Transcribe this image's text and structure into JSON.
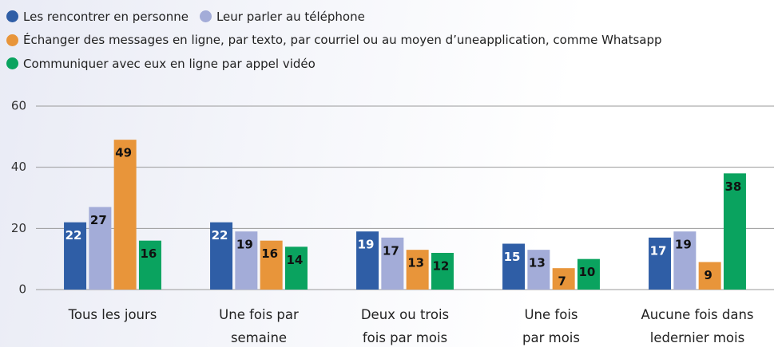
{
  "chart_data": {
    "type": "bar",
    "categories": [
      "Tous les jours",
      "Une fois par\nsemaine",
      "Deux ou trois\nfois par mois",
      "Une fois\npar mois",
      "Aucune fois dans\nledernier mois"
    ],
    "series": [
      {
        "name": "Les rencontrer en personne",
        "color": "#2f5ea6",
        "label_color": "#ffffff",
        "values": [
          22,
          22,
          19,
          15,
          17
        ]
      },
      {
        "name": "Leur parler au téléphone",
        "color": "#a3acd8",
        "label_color": "#111111",
        "values": [
          27,
          19,
          17,
          13,
          19
        ]
      },
      {
        "name": "Échanger des messages en ligne, par texto, par courriel ou au moyen d’uneapplication, comme Whatsapp",
        "color": "#e8953a",
        "label_color": "#111111",
        "values": [
          49,
          16,
          13,
          7,
          9
        ]
      },
      {
        "name": "Communiquer avec eux en ligne par appel vidéo",
        "color": "#0aa35f",
        "label_color": "#111111",
        "values": [
          16,
          14,
          12,
          10,
          38
        ]
      }
    ],
    "ylim": [
      0,
      60
    ],
    "yticks": [
      0,
      20,
      40,
      60
    ],
    "grid": true
  }
}
